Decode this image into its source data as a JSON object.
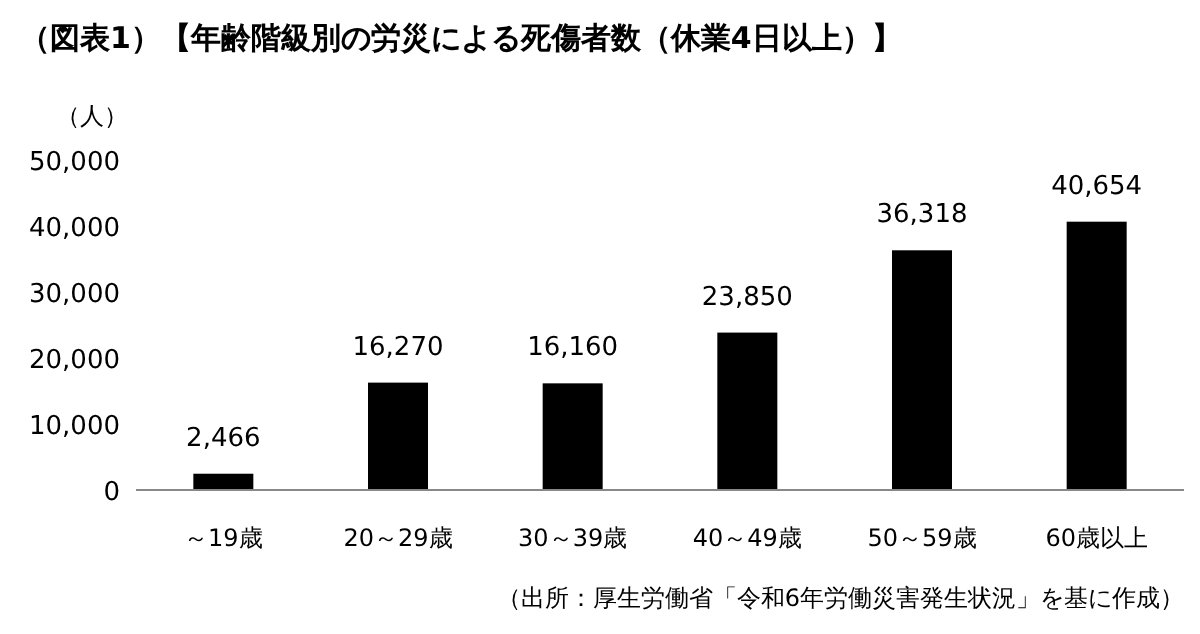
{
  "chart_data": {
    "type": "bar",
    "title": "（図表1）【年齢階級別の労災による死傷者数（休業4日以上）】",
    "ylabel": "（人）",
    "categories": [
      "～19歳",
      "20～29歳",
      "30～39歳",
      "40～49歳",
      "50～59歳",
      "60歳以上"
    ],
    "values": [
      2466,
      16270,
      16160,
      23850,
      36318,
      40654
    ],
    "color": "#000000",
    "ylim": [
      0,
      50000
    ],
    "yticks": [
      {
        "value": 0,
        "label": "0"
      },
      {
        "value": 10000,
        "label": "10,000"
      },
      {
        "value": 20000,
        "label": "20,000"
      },
      {
        "value": 30000,
        "label": "30,000"
      },
      {
        "value": 40000,
        "label": "40,000"
      },
      {
        "value": 50000,
        "label": "50,000"
      }
    ],
    "grid": false,
    "value_labels": [
      "2,466",
      "16,270",
      "16,160",
      "23,850",
      "36,318",
      "40,654"
    ],
    "annotations": [
      "（出所：厚生労働省「令和6年労働災害発生状況」を基に作成）"
    ]
  }
}
